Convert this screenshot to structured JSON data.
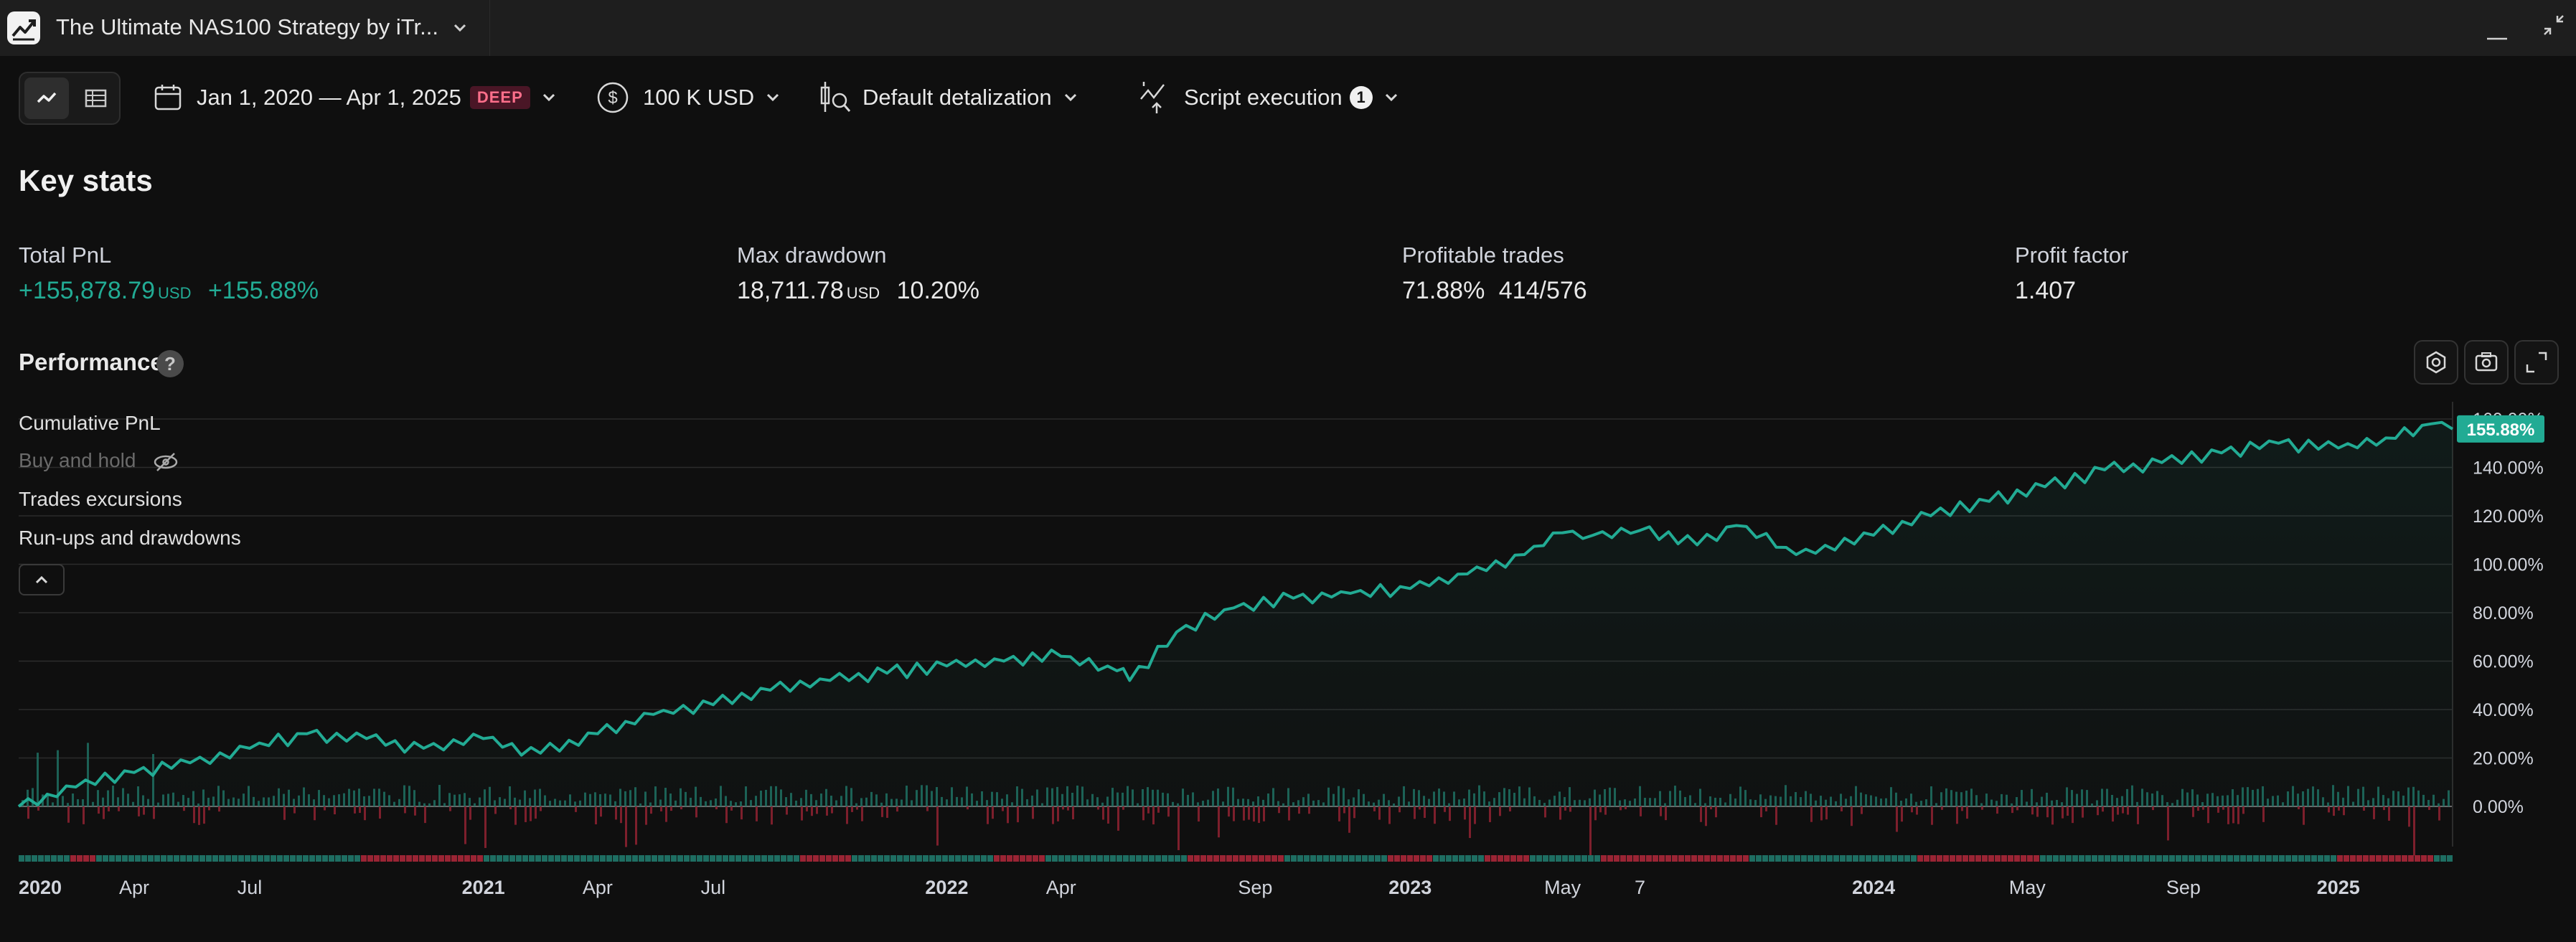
{
  "window": {
    "tab_title": "The Ultimate NAS100 Strategy by iTr...",
    "icons": {
      "app": "strategy-chart-icon",
      "minimize": "minimize-icon",
      "restore": "restore-window-icon"
    }
  },
  "toolbar": {
    "date_range": "Jan 1, 2020 — Apr 1, 2025",
    "date_badge": "DEEP",
    "capital": "100 K USD",
    "detalization": "Default detalization",
    "script_execution": "Script execution",
    "script_execution_count": "1"
  },
  "key_stats": {
    "title": "Key stats",
    "total_pnl": {
      "label": "Total PnL",
      "value": "+155,878.79",
      "unit": "USD",
      "percent": "+155.88%"
    },
    "max_drawdown": {
      "label": "Max drawdown",
      "value": "18,711.78",
      "unit": "USD",
      "percent": "10.20%"
    },
    "profitable_trades": {
      "label": "Profitable trades",
      "percent": "71.88%",
      "ratio": "414/576"
    },
    "profit_factor": {
      "label": "Profit factor",
      "value": "1.407"
    }
  },
  "performance": {
    "title": "Performance",
    "help": "?",
    "legend": {
      "cumulative_pnl": "Cumulative PnL",
      "buy_and_hold": "Buy and hold",
      "trades_excursions": "Trades excursions",
      "runups_drawdowns": "Run-ups and drawdowns"
    }
  },
  "colors": {
    "accent_green": "#22ab94",
    "loss_red": "#f23645",
    "background": "#0f0f0f"
  },
  "chart_data": {
    "type": "line",
    "title": "",
    "series": [
      {
        "name": "Cumulative PnL",
        "x": [
          "2020-01-01",
          "2020-02-15",
          "2020-04-01",
          "2020-05-15",
          "2020-07-01",
          "2020-08-15",
          "2020-10-01",
          "2020-11-15",
          "2021-01-01",
          "2021-02-15",
          "2021-04-01",
          "2021-05-15",
          "2021-07-01",
          "2021-08-15",
          "2021-10-01",
          "2021-11-15",
          "2022-01-01",
          "2022-02-15",
          "2022-04-01",
          "2022-05-15",
          "2022-05-25",
          "2022-07-01",
          "2022-08-15",
          "2022-10-01",
          "2022-11-15",
          "2023-01-01",
          "2023-02-15",
          "2023-04-01",
          "2023-05-01",
          "2023-05-25",
          "2023-07-01",
          "2023-08-15",
          "2023-09-15",
          "2023-11-01",
          "2024-01-01",
          "2024-02-15",
          "2024-04-01",
          "2024-05-15",
          "2024-07-01",
          "2024-08-15",
          "2024-10-01",
          "2024-11-15",
          "2025-01-01",
          "2025-02-15",
          "2025-03-15",
          "2025-04-01"
        ],
        "y": [
          0,
          8,
          14,
          18,
          24,
          30,
          28,
          24,
          28,
          22,
          30,
          38,
          42,
          48,
          52,
          55,
          58,
          60,
          62,
          56,
          52,
          72,
          82,
          86,
          88,
          90,
          96,
          104,
          113,
          112,
          114,
          108,
          116,
          104,
          112,
          120,
          126,
          132,
          139,
          142,
          146,
          150,
          148,
          152,
          158,
          155.88
        ]
      }
    ],
    "y_ticks": [
      "0.00%",
      "20.00%",
      "40.00%",
      "60.00%",
      "80.00%",
      "100.00%",
      "120.00%",
      "140.00%",
      "160.00%"
    ],
    "x_ticks": [
      "2020",
      "Apr",
      "Jul",
      "2021",
      "Apr",
      "Jul",
      "2022",
      "Apr",
      "Sep",
      "2023",
      "May",
      "7",
      "2024",
      "May",
      "Sep",
      "2025"
    ],
    "last_value_label": "155.88%",
    "ylim": [
      0,
      160
    ],
    "grid": true
  }
}
